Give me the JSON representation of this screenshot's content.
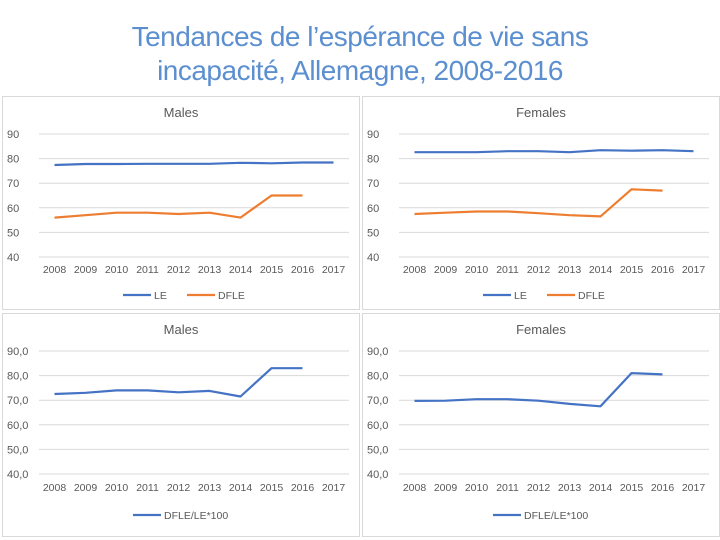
{
  "slide": {
    "title_line1": "Tendances de l’espérance de vie sans",
    "title_line2": "incapacité, Allemagne, 2008-2016"
  },
  "colors": {
    "le": "#4472c4",
    "dfle": "#ed7d31",
    "ratio": "#4472c4",
    "grid": "#d9d9d9",
    "text": "#595959"
  },
  "chart_data": [
    {
      "id": "males-top",
      "type": "line",
      "title": "Males",
      "categories": [
        "2008",
        "2009",
        "2010",
        "2011",
        "2012",
        "2013",
        "2014",
        "2015",
        "2016",
        "2017"
      ],
      "ylim": [
        40,
        90
      ],
      "yticks": [
        "90",
        "80",
        "70",
        "60",
        "50",
        "40"
      ],
      "series": [
        {
          "name": "LE",
          "color": "#4472c4",
          "values": [
            77.4,
            77.8,
            77.8,
            77.9,
            77.9,
            77.9,
            78.3,
            78.1,
            78.4,
            78.4
          ]
        },
        {
          "name": "DFLE",
          "color": "#ed7d31",
          "values": [
            56.0,
            57.0,
            58.0,
            58.0,
            57.5,
            58.0,
            56.0,
            65.0,
            65.0,
            null
          ]
        }
      ]
    },
    {
      "id": "females-top",
      "type": "line",
      "title": "Females",
      "categories": [
        "2008",
        "2009",
        "2010",
        "2011",
        "2012",
        "2013",
        "2014",
        "2015",
        "2016",
        "2017"
      ],
      "ylim": [
        40,
        90
      ],
      "yticks": [
        "90",
        "80",
        "70",
        "60",
        "50",
        "40"
      ],
      "series": [
        {
          "name": "LE",
          "color": "#4472c4",
          "values": [
            82.6,
            82.6,
            82.6,
            83.0,
            83.0,
            82.6,
            83.4,
            83.2,
            83.4,
            83.0
          ]
        },
        {
          "name": "DFLE",
          "color": "#ed7d31",
          "values": [
            57.5,
            58.0,
            58.5,
            58.5,
            57.8,
            57.0,
            56.5,
            67.5,
            67.0,
            null
          ]
        }
      ]
    },
    {
      "id": "males-bottom",
      "type": "line",
      "title": "Males",
      "categories": [
        "2008",
        "2009",
        "2010",
        "2011",
        "2012",
        "2013",
        "2014",
        "2015",
        "2016",
        "2017"
      ],
      "ylim": [
        40,
        90
      ],
      "yticks": [
        "90,0",
        "80,0",
        "70,0",
        "60,0",
        "50,0",
        "40,0"
      ],
      "series": [
        {
          "name": "DFLE/LE*100",
          "color": "#4472c4",
          "values": [
            72.5,
            73.0,
            74.0,
            74.0,
            73.2,
            73.8,
            71.5,
            83.0,
            83.0,
            null
          ]
        }
      ]
    },
    {
      "id": "females-bottom",
      "type": "line",
      "title": "Females",
      "categories": [
        "2008",
        "2009",
        "2010",
        "2011",
        "2012",
        "2013",
        "2014",
        "2015",
        "2016",
        "2017"
      ],
      "ylim": [
        40,
        90
      ],
      "yticks": [
        "90,0",
        "80,0",
        "70,0",
        "60,0",
        "50,0",
        "40,0"
      ],
      "series": [
        {
          "name": "DFLE/LE*100",
          "color": "#4472c4",
          "values": [
            69.7,
            69.8,
            70.4,
            70.4,
            69.8,
            68.5,
            67.5,
            81.0,
            80.5,
            null
          ]
        }
      ]
    }
  ]
}
